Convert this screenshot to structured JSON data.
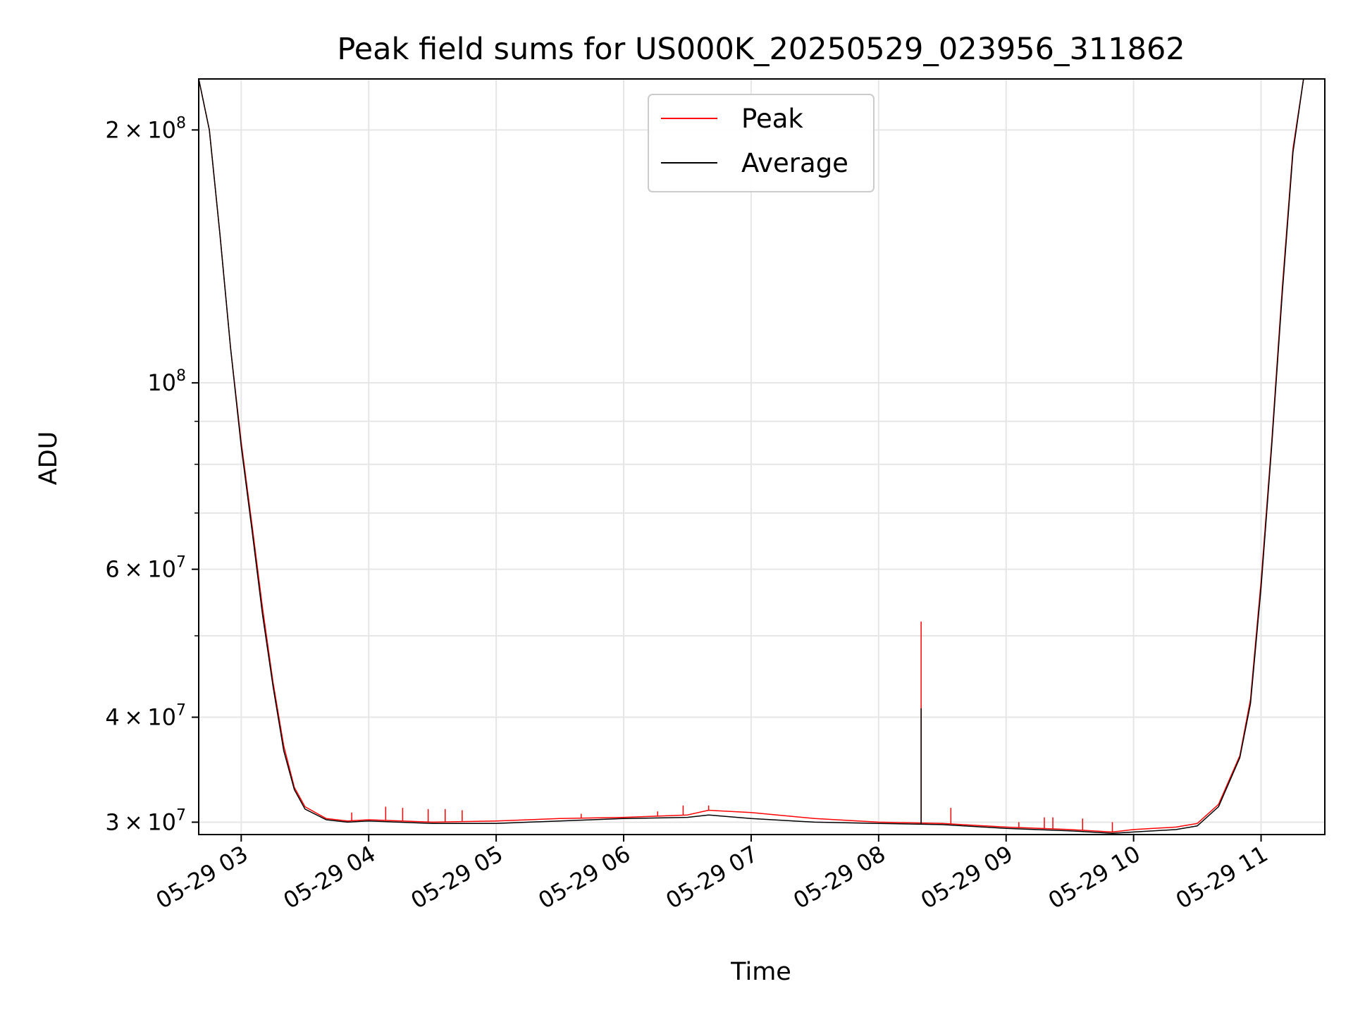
{
  "chart_data": {
    "type": "line",
    "title": "Peak field sums for US000K_20250529_023956_311862",
    "xlabel": "Time",
    "ylabel": "ADU",
    "yscale": "log",
    "grid": true,
    "legend_position": "upper-center",
    "xlim": [
      "2025-05-29 02:40",
      "2025-05-29 11:30"
    ],
    "ylim": [
      29000000,
      230000000
    ],
    "xticks": [
      {
        "value": "2025-05-29 03:00",
        "label": "05-29 03"
      },
      {
        "value": "2025-05-29 04:00",
        "label": "05-29 04"
      },
      {
        "value": "2025-05-29 05:00",
        "label": "05-29 05"
      },
      {
        "value": "2025-05-29 06:00",
        "label": "05-29 06"
      },
      {
        "value": "2025-05-29 07:00",
        "label": "05-29 07"
      },
      {
        "value": "2025-05-29 08:00",
        "label": "05-29 08"
      },
      {
        "value": "2025-05-29 09:00",
        "label": "05-29 09"
      },
      {
        "value": "2025-05-29 10:00",
        "label": "05-29 10"
      },
      {
        "value": "2025-05-29 11:00",
        "label": "05-29 11"
      }
    ],
    "yticks_major": [
      {
        "value": 30000000,
        "mant": "3",
        "exp": "7"
      },
      {
        "value": 40000000,
        "mant": "4",
        "exp": "7"
      },
      {
        "value": 60000000,
        "mant": "6",
        "exp": "7"
      },
      {
        "value": 100000000,
        "mant": "",
        "exp": "8"
      },
      {
        "value": 200000000,
        "mant": "2",
        "exp": "8"
      }
    ],
    "yticks_minor": [
      50000000,
      70000000,
      80000000,
      90000000
    ],
    "series": [
      {
        "name": "Peak",
        "color": "#ff0000",
        "x": [
          "2025-05-29 02:40",
          "2025-05-29 02:45",
          "2025-05-29 02:50",
          "2025-05-29 02:55",
          "2025-05-29 03:00",
          "2025-05-29 03:05",
          "2025-05-29 03:10",
          "2025-05-29 03:15",
          "2025-05-29 03:20",
          "2025-05-29 03:25",
          "2025-05-29 03:30",
          "2025-05-29 03:40",
          "2025-05-29 03:50",
          "2025-05-29 04:00",
          "2025-05-29 04:30",
          "2025-05-29 05:00",
          "2025-05-29 05:30",
          "2025-05-29 06:00",
          "2025-05-29 06:30",
          "2025-05-29 06:40",
          "2025-05-29 07:00",
          "2025-05-29 07:30",
          "2025-05-29 08:00",
          "2025-05-29 08:30",
          "2025-05-29 09:00",
          "2025-05-29 09:30",
          "2025-05-29 09:50",
          "2025-05-29 10:00",
          "2025-05-29 10:20",
          "2025-05-29 10:30",
          "2025-05-29 10:40",
          "2025-05-29 10:50",
          "2025-05-29 10:55",
          "2025-05-29 11:00",
          "2025-05-29 11:05",
          "2025-05-29 11:10",
          "2025-05-29 11:15",
          "2025-05-29 11:20"
        ],
        "y": [
          230000000,
          200000000,
          150000000,
          110000000,
          85000000,
          68000000,
          54000000,
          44000000,
          37000000,
          33000000,
          31300000,
          30300000,
          30100000,
          30200000,
          30000000,
          30100000,
          30300000,
          30400000,
          30600000,
          31000000,
          30800000,
          30300000,
          30000000,
          29900000,
          29600000,
          29400000,
          29200000,
          29400000,
          29600000,
          29900000,
          31500000,
          36000000,
          42000000,
          58000000,
          85000000,
          130000000,
          190000000,
          230000000
        ],
        "spikes": [
          {
            "x": "2025-05-29 03:52",
            "y": 30800000
          },
          {
            "x": "2025-05-29 04:08",
            "y": 31300000
          },
          {
            "x": "2025-05-29 04:16",
            "y": 31200000
          },
          {
            "x": "2025-05-29 04:28",
            "y": 31100000
          },
          {
            "x": "2025-05-29 04:36",
            "y": 31100000
          },
          {
            "x": "2025-05-29 04:44",
            "y": 31000000
          },
          {
            "x": "2025-05-29 05:40",
            "y": 30700000
          },
          {
            "x": "2025-05-29 06:16",
            "y": 30900000
          },
          {
            "x": "2025-05-29 06:28",
            "y": 31400000
          },
          {
            "x": "2025-05-29 06:40",
            "y": 31400000
          },
          {
            "x": "2025-05-29 08:20",
            "y": 52000000
          },
          {
            "x": "2025-05-29 08:34",
            "y": 31200000
          },
          {
            "x": "2025-05-29 09:06",
            "y": 30000000
          },
          {
            "x": "2025-05-29 09:18",
            "y": 30400000
          },
          {
            "x": "2025-05-29 09:22",
            "y": 30400000
          },
          {
            "x": "2025-05-29 09:36",
            "y": 30300000
          },
          {
            "x": "2025-05-29 09:50",
            "y": 30000000
          }
        ]
      },
      {
        "name": "Average",
        "color": "#000000",
        "x": [
          "2025-05-29 02:40",
          "2025-05-29 02:45",
          "2025-05-29 02:50",
          "2025-05-29 02:55",
          "2025-05-29 03:00",
          "2025-05-29 03:05",
          "2025-05-29 03:10",
          "2025-05-29 03:15",
          "2025-05-29 03:20",
          "2025-05-29 03:25",
          "2025-05-29 03:30",
          "2025-05-29 03:40",
          "2025-05-29 03:50",
          "2025-05-29 04:00",
          "2025-05-29 04:30",
          "2025-05-29 05:00",
          "2025-05-29 05:30",
          "2025-05-29 06:00",
          "2025-05-29 06:30",
          "2025-05-29 06:40",
          "2025-05-29 07:00",
          "2025-05-29 07:30",
          "2025-05-29 08:00",
          "2025-05-29 08:30",
          "2025-05-29 09:00",
          "2025-05-29 09:30",
          "2025-05-29 09:50",
          "2025-05-29 10:00",
          "2025-05-29 10:20",
          "2025-05-29 10:30",
          "2025-05-29 10:40",
          "2025-05-29 10:50",
          "2025-05-29 10:55",
          "2025-05-29 11:00",
          "2025-05-29 11:05",
          "2025-05-29 11:10",
          "2025-05-29 11:15",
          "2025-05-29 11:20"
        ],
        "y": [
          230000000,
          200000000,
          150000000,
          110000000,
          84000000,
          67000000,
          53000000,
          43500000,
          36500000,
          32800000,
          31100000,
          30200000,
          30000000,
          30100000,
          29900000,
          29900000,
          30100000,
          30300000,
          30400000,
          30600000,
          30300000,
          30000000,
          29900000,
          29800000,
          29500000,
          29300000,
          29100000,
          29200000,
          29400000,
          29700000,
          31300000,
          35800000,
          41500000,
          57000000,
          84000000,
          128000000,
          188000000,
          230000000
        ],
        "spikes": [
          {
            "x": "2025-05-29 08:20",
            "y": 41000000
          }
        ]
      }
    ]
  }
}
